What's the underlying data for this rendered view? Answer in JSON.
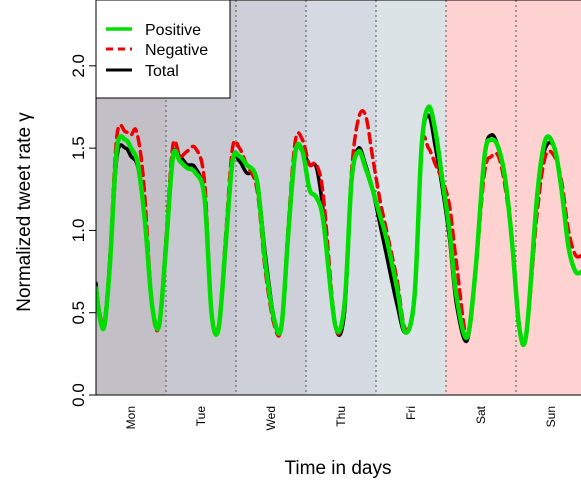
{
  "chart_data": {
    "type": "line",
    "title": "",
    "xlabel": "Time in days",
    "ylabel": "Normalized tweet rate γ",
    "xlim": [
      0,
      7
    ],
    "ylim": [
      0,
      2.4
    ],
    "yticks": [
      "0.0",
      "0.5",
      "1.0",
      "1.5",
      "2.0"
    ],
    "categories": [
      "Mon",
      "Tue",
      "Wed",
      "Thu",
      "Fri",
      "Sat",
      "Sun"
    ],
    "legend_position": "top-left",
    "grid": false,
    "day_band_colors": [
      "#c2c0c6",
      "#c8c8d0",
      "#cdcfd9",
      "#d5d9e1",
      "#dce3e6",
      "#ffd2d2",
      "#ffd2d2"
    ],
    "series": [
      {
        "name": "Positive",
        "color": "#00dd00",
        "dash": "solid",
        "x": [
          0,
          0.05,
          0.12,
          0.2,
          0.3,
          0.42,
          0.5,
          0.6,
          0.7,
          0.8,
          0.9,
          1.0,
          1.1,
          1.2,
          1.3,
          1.42,
          1.55,
          1.65,
          1.75,
          1.85,
          1.95,
          2.05,
          2.15,
          2.3,
          2.42,
          2.55,
          2.65,
          2.75,
          2.85,
          2.95,
          3.05,
          3.15,
          3.25,
          3.42,
          3.55,
          3.65,
          3.75,
          3.85,
          3.95,
          4.05,
          4.15,
          4.3,
          4.42,
          4.55,
          4.65,
          4.75,
          4.85,
          4.95,
          5.05,
          5.15,
          5.3,
          5.42,
          5.55,
          5.65,
          5.75,
          5.85,
          5.95,
          6.05,
          6.15,
          6.3,
          6.42,
          6.55,
          6.65,
          6.75,
          6.85,
          6.95,
          7.0
        ],
        "y": [
          0.65,
          0.48,
          0.42,
          0.8,
          1.5,
          1.55,
          1.5,
          1.4,
          1.05,
          0.55,
          0.42,
          0.9,
          1.45,
          1.42,
          1.38,
          1.35,
          1.2,
          0.5,
          0.4,
          0.9,
          1.42,
          1.45,
          1.4,
          1.3,
          0.8,
          0.45,
          0.42,
          1.0,
          1.48,
          1.48,
          1.25,
          1.2,
          1.05,
          0.42,
          0.55,
          1.3,
          1.48,
          1.38,
          1.25,
          1.1,
          0.95,
          0.65,
          0.38,
          0.6,
          1.5,
          1.75,
          1.6,
          1.3,
          1.0,
          0.6,
          0.35,
          0.75,
          1.45,
          1.55,
          1.5,
          1.3,
          0.9,
          0.4,
          0.38,
          1.2,
          1.55,
          1.5,
          1.25,
          0.9,
          0.75,
          0.75,
          0.75
        ]
      },
      {
        "name": "Negative",
        "color": "#ee0000",
        "dash": "dashed",
        "x": [
          0,
          0.05,
          0.12,
          0.2,
          0.3,
          0.42,
          0.5,
          0.58,
          0.68,
          0.8,
          0.9,
          1.0,
          1.1,
          1.2,
          1.3,
          1.42,
          1.55,
          1.65,
          1.75,
          1.85,
          1.95,
          2.05,
          2.15,
          2.3,
          2.42,
          2.55,
          2.65,
          2.75,
          2.85,
          2.95,
          3.05,
          3.15,
          3.25,
          3.42,
          3.55,
          3.65,
          3.75,
          3.85,
          3.95,
          4.05,
          4.15,
          4.3,
          4.42,
          4.55,
          4.65,
          4.75,
          4.85,
          4.95,
          5.05,
          5.15,
          5.3,
          5.42,
          5.55,
          5.65,
          5.75,
          5.85,
          5.95,
          6.05,
          6.15,
          6.3,
          6.42,
          6.55,
          6.65,
          6.75,
          6.85,
          6.95,
          7.0
        ],
        "y": [
          0.65,
          0.5,
          0.45,
          0.85,
          1.58,
          1.6,
          1.58,
          1.6,
          1.3,
          0.55,
          0.42,
          0.95,
          1.52,
          1.45,
          1.48,
          1.5,
          1.3,
          0.5,
          0.42,
          0.95,
          1.5,
          1.5,
          1.4,
          1.25,
          0.75,
          0.42,
          0.42,
          1.05,
          1.55,
          1.55,
          1.4,
          1.4,
          1.2,
          0.42,
          0.55,
          1.35,
          1.68,
          1.7,
          1.45,
          1.2,
          1.0,
          0.7,
          0.4,
          0.6,
          1.5,
          1.5,
          1.4,
          1.3,
          1.15,
          0.8,
          0.35,
          0.75,
          1.35,
          1.45,
          1.45,
          1.25,
          0.9,
          0.4,
          0.38,
          1.1,
          1.45,
          1.45,
          1.3,
          1.0,
          0.85,
          0.85,
          0.85
        ]
      },
      {
        "name": "Total",
        "color": "#000000",
        "dash": "solid",
        "x": [
          0,
          0.05,
          0.12,
          0.2,
          0.3,
          0.42,
          0.5,
          0.6,
          0.7,
          0.8,
          0.9,
          1.0,
          1.1,
          1.2,
          1.3,
          1.42,
          1.55,
          1.65,
          1.75,
          1.85,
          1.95,
          2.05,
          2.15,
          2.3,
          2.42,
          2.55,
          2.65,
          2.75,
          2.85,
          2.95,
          3.05,
          3.15,
          3.25,
          3.42,
          3.55,
          3.65,
          3.75,
          3.85,
          3.95,
          4.05,
          4.15,
          4.3,
          4.42,
          4.55,
          4.65,
          4.75,
          4.85,
          4.95,
          5.05,
          5.15,
          5.3,
          5.42,
          5.55,
          5.65,
          5.75,
          5.85,
          5.95,
          6.05,
          6.15,
          6.3,
          6.42,
          6.55,
          6.65,
          6.75,
          6.85,
          6.95,
          7.0
        ],
        "y": [
          0.68,
          0.5,
          0.43,
          0.8,
          1.45,
          1.5,
          1.45,
          1.38,
          1.05,
          0.55,
          0.43,
          0.9,
          1.45,
          1.45,
          1.4,
          1.38,
          1.2,
          0.5,
          0.4,
          0.9,
          1.42,
          1.42,
          1.35,
          1.3,
          0.85,
          0.45,
          0.42,
          1.0,
          1.48,
          1.48,
          1.4,
          1.38,
          1.1,
          0.42,
          0.5,
          1.3,
          1.5,
          1.4,
          1.25,
          1.05,
          0.85,
          0.55,
          0.38,
          0.6,
          1.5,
          1.7,
          1.5,
          1.25,
          0.95,
          0.55,
          0.33,
          0.75,
          1.45,
          1.58,
          1.5,
          1.3,
          0.9,
          0.4,
          0.38,
          1.2,
          1.5,
          1.5,
          1.25,
          0.9,
          0.75,
          0.75,
          0.75
        ]
      }
    ]
  }
}
